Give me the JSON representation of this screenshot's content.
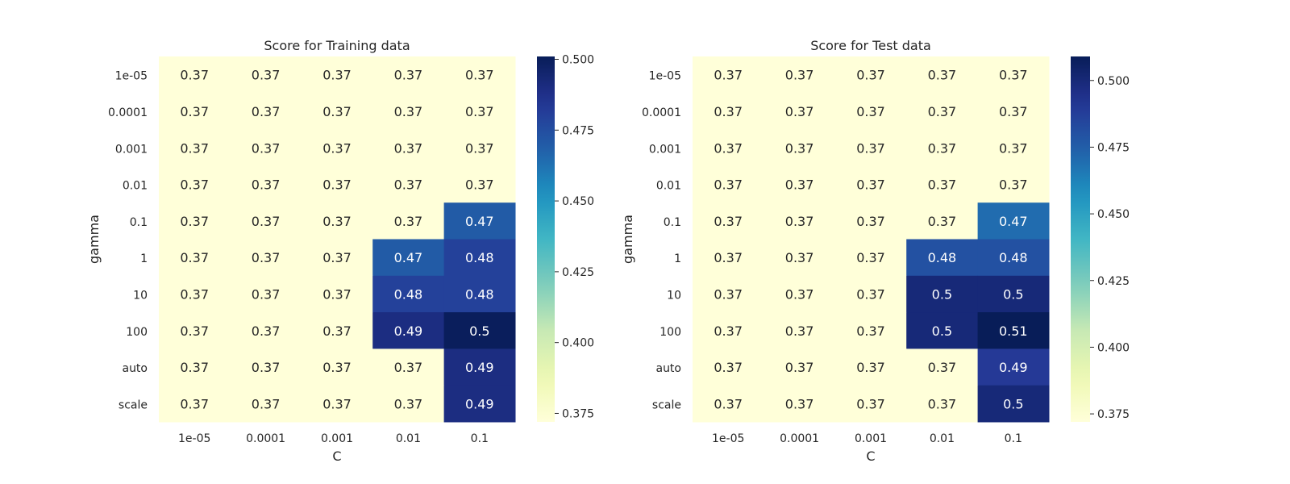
{
  "chart_data": [
    {
      "type": "heatmap",
      "title": "Score for Training data",
      "xlabel": "C",
      "ylabel": "gamma",
      "x_categories": [
        "1e-05",
        "0.0001",
        "0.001",
        "0.01",
        "0.1"
      ],
      "y_categories": [
        "1e-05",
        "0.0001",
        "0.001",
        "0.01",
        "0.1",
        "1",
        "10",
        "100",
        "auto",
        "scale"
      ],
      "values": [
        [
          0.37,
          0.37,
          0.37,
          0.37,
          0.37
        ],
        [
          0.37,
          0.37,
          0.37,
          0.37,
          0.37
        ],
        [
          0.37,
          0.37,
          0.37,
          0.37,
          0.37
        ],
        [
          0.37,
          0.37,
          0.37,
          0.37,
          0.37
        ],
        [
          0.37,
          0.37,
          0.37,
          0.37,
          0.47
        ],
        [
          0.37,
          0.37,
          0.37,
          0.47,
          0.48
        ],
        [
          0.37,
          0.37,
          0.37,
          0.48,
          0.48
        ],
        [
          0.37,
          0.37,
          0.37,
          0.49,
          0.5
        ],
        [
          0.37,
          0.37,
          0.37,
          0.37,
          0.49
        ],
        [
          0.37,
          0.37,
          0.37,
          0.37,
          0.49
        ]
      ],
      "labels": [
        [
          "0.37",
          "0.37",
          "0.37",
          "0.37",
          "0.37"
        ],
        [
          "0.37",
          "0.37",
          "0.37",
          "0.37",
          "0.37"
        ],
        [
          "0.37",
          "0.37",
          "0.37",
          "0.37",
          "0.37"
        ],
        [
          "0.37",
          "0.37",
          "0.37",
          "0.37",
          "0.37"
        ],
        [
          "0.37",
          "0.37",
          "0.37",
          "0.37",
          "0.47"
        ],
        [
          "0.37",
          "0.37",
          "0.37",
          "0.47",
          "0.48"
        ],
        [
          "0.37",
          "0.37",
          "0.37",
          "0.48",
          "0.48"
        ],
        [
          "0.37",
          "0.37",
          "0.37",
          "0.49",
          "0.5"
        ],
        [
          "0.37",
          "0.37",
          "0.37",
          "0.37",
          "0.49"
        ],
        [
          "0.37",
          "0.37",
          "0.37",
          "0.37",
          "0.49"
        ]
      ],
      "colorbar": {
        "colormap": "YlGnBu",
        "range": [
          0.372,
          0.501
        ],
        "ticks": [
          0.375,
          0.4,
          0.425,
          0.45,
          0.475,
          0.5
        ],
        "tick_labels": [
          "0.375",
          "0.400",
          "0.425",
          "0.450",
          "0.475",
          "0.500"
        ]
      }
    },
    {
      "type": "heatmap",
      "title": "Score for Test data",
      "xlabel": "C",
      "ylabel": "gamma",
      "x_categories": [
        "1e-05",
        "0.0001",
        "0.001",
        "0.01",
        "0.1"
      ],
      "y_categories": [
        "1e-05",
        "0.0001",
        "0.001",
        "0.01",
        "0.1",
        "1",
        "10",
        "100",
        "auto",
        "scale"
      ],
      "values": [
        [
          0.37,
          0.37,
          0.37,
          0.37,
          0.37
        ],
        [
          0.37,
          0.37,
          0.37,
          0.37,
          0.37
        ],
        [
          0.37,
          0.37,
          0.37,
          0.37,
          0.37
        ],
        [
          0.37,
          0.37,
          0.37,
          0.37,
          0.37
        ],
        [
          0.37,
          0.37,
          0.37,
          0.37,
          0.47
        ],
        [
          0.37,
          0.37,
          0.37,
          0.48,
          0.48
        ],
        [
          0.37,
          0.37,
          0.37,
          0.5,
          0.5
        ],
        [
          0.37,
          0.37,
          0.37,
          0.5,
          0.51
        ],
        [
          0.37,
          0.37,
          0.37,
          0.37,
          0.49
        ],
        [
          0.37,
          0.37,
          0.37,
          0.37,
          0.5
        ]
      ],
      "labels": [
        [
          "0.37",
          "0.37",
          "0.37",
          "0.37",
          "0.37"
        ],
        [
          "0.37",
          "0.37",
          "0.37",
          "0.37",
          "0.37"
        ],
        [
          "0.37",
          "0.37",
          "0.37",
          "0.37",
          "0.37"
        ],
        [
          "0.37",
          "0.37",
          "0.37",
          "0.37",
          "0.37"
        ],
        [
          "0.37",
          "0.37",
          "0.37",
          "0.37",
          "0.47"
        ],
        [
          "0.37",
          "0.37",
          "0.37",
          "0.48",
          "0.48"
        ],
        [
          "0.37",
          "0.37",
          "0.37",
          "0.5",
          "0.5"
        ],
        [
          "0.37",
          "0.37",
          "0.37",
          "0.5",
          "0.51"
        ],
        [
          "0.37",
          "0.37",
          "0.37",
          "0.37",
          "0.49"
        ],
        [
          "0.37",
          "0.37",
          "0.37",
          "0.37",
          "0.5"
        ]
      ],
      "colorbar": {
        "colormap": "YlGnBu",
        "range": [
          0.372,
          0.509
        ],
        "ticks": [
          0.375,
          0.4,
          0.425,
          0.45,
          0.475,
          0.5
        ],
        "tick_labels": [
          "0.375",
          "0.400",
          "0.425",
          "0.450",
          "0.475",
          "0.500"
        ]
      }
    }
  ]
}
